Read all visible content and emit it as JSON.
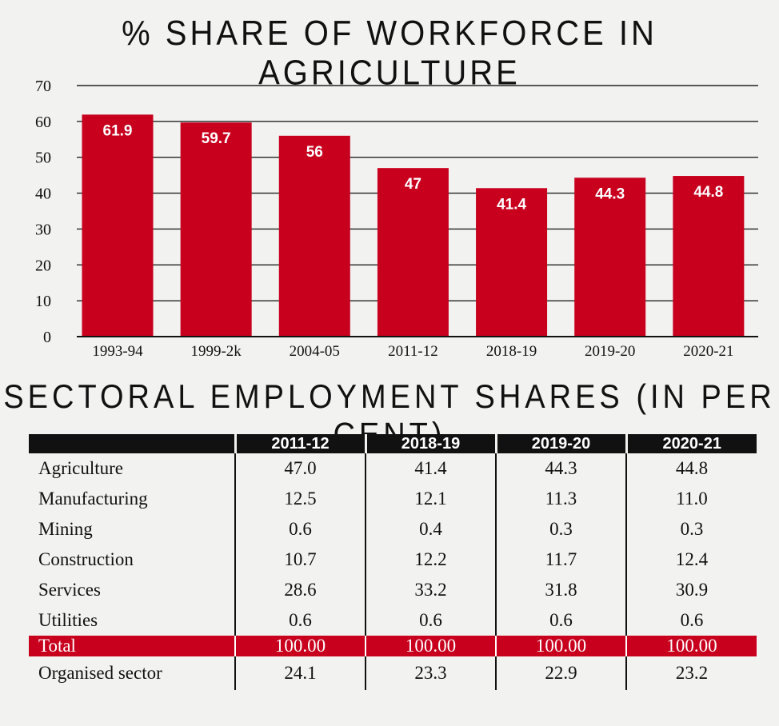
{
  "chart_data": {
    "type": "bar",
    "title": "% SHARE OF WORKFORCE IN AGRICULTURE",
    "categories": [
      "1993-94",
      "1999-2k",
      "2004-05",
      "2011-12",
      "2018-19",
      "2019-20",
      "2020-21"
    ],
    "values": [
      61.9,
      59.7,
      56,
      47,
      41.4,
      44.3,
      44.8
    ],
    "value_labels": [
      "61.9",
      "59.7",
      "56",
      "47",
      "41.4",
      "44.3",
      "44.8"
    ],
    "ylim": [
      0,
      70
    ],
    "yticks": [
      0,
      10,
      20,
      30,
      40,
      50,
      60,
      70
    ],
    "xlabel": "",
    "ylabel": "",
    "grid": true,
    "bar_color": "#c8001e"
  },
  "table": {
    "title": "SECTORAL EMPLOYMENT SHARES (IN PER CENT)",
    "columns": [
      "2011-12",
      "2018-19",
      "2019-20",
      "2020-21"
    ],
    "rows": [
      {
        "label": "Agriculture",
        "values": [
          "47.0",
          "41.4",
          "44.3",
          "44.8"
        ]
      },
      {
        "label": "Manufacturing",
        "values": [
          "12.5",
          "12.1",
          "11.3",
          "11.0"
        ]
      },
      {
        "label": "Mining",
        "values": [
          "0.6",
          "0.4",
          "0.3",
          "0.3"
        ]
      },
      {
        "label": "Construction",
        "values": [
          "10.7",
          "12.2",
          "11.7",
          "12.4"
        ]
      },
      {
        "label": "Services",
        "values": [
          "28.6",
          "33.2",
          "31.8",
          "30.9"
        ]
      },
      {
        "label": "Utilities",
        "values": [
          "0.6",
          "0.6",
          "0.6",
          "0.6"
        ]
      }
    ],
    "total": {
      "label": "Total",
      "values": [
        "100.00",
        "100.00",
        "100.00",
        "100.00"
      ]
    },
    "organised": {
      "label": "Organised sector",
      "values": [
        "24.1",
        "23.3",
        "22.9",
        "23.2"
      ]
    },
    "total_color": "#c8001e"
  }
}
